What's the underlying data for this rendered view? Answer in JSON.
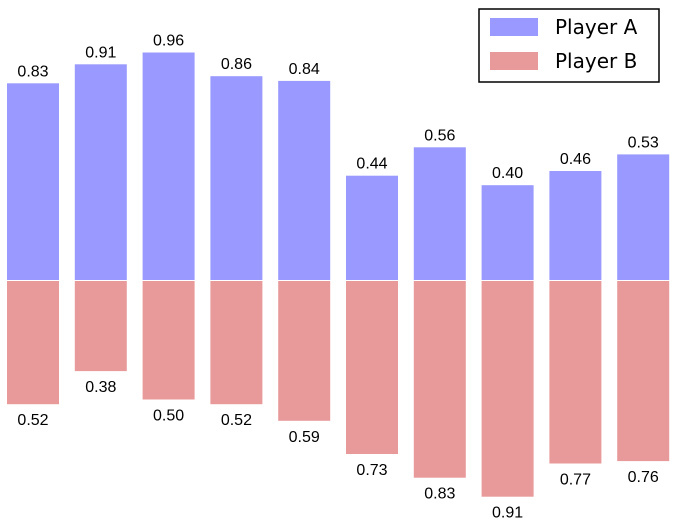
{
  "chart_data": {
    "type": "bar",
    "categories": [
      "",
      "",
      "",
      "",
      "",
      "",
      "",
      "",
      "",
      ""
    ],
    "series": [
      {
        "name": "Player A",
        "color": "#9999ff",
        "direction": "up",
        "values": [
          0.83,
          0.91,
          0.96,
          0.86,
          0.84,
          0.44,
          0.56,
          0.4,
          0.46,
          0.53
        ],
        "labels": [
          "0.83",
          "0.91",
          "0.96",
          "0.86",
          "0.84",
          "0.44",
          "0.56",
          "0.40",
          "0.46",
          "0.53"
        ]
      },
      {
        "name": "Player B",
        "color": "#e89a9a",
        "direction": "down",
        "values": [
          0.52,
          0.38,
          0.5,
          0.52,
          0.59,
          0.73,
          0.83,
          0.91,
          0.77,
          0.76
        ],
        "labels": [
          "0.52",
          "0.38",
          "0.50",
          "0.52",
          "0.59",
          "0.73",
          "0.83",
          "0.91",
          "0.77",
          "0.76"
        ]
      }
    ],
    "title": "",
    "xlabel": "",
    "ylabel": "",
    "ylim": [
      -1,
      1
    ],
    "axes_visible": false,
    "grid": false,
    "legend_position": "top-right"
  }
}
